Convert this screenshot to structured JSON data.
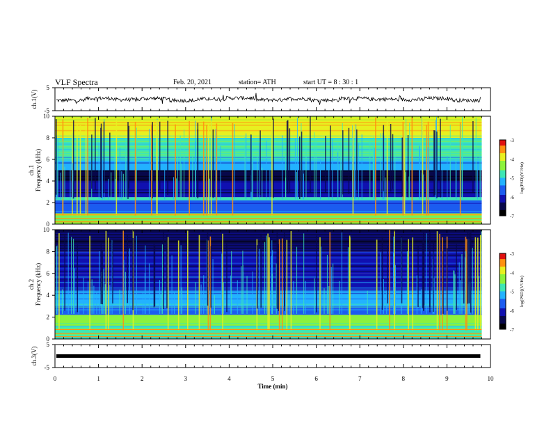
{
  "header": {
    "title": "VLF Spectra",
    "date": "Feb. 20, 2021",
    "station": "station= ATH",
    "start": "start  UT =   8  : 30 : 1"
  },
  "colors": {
    "spectrogram_scale": [
      "#000000",
      "#08084a",
      "#1010b0",
      "#1c5cf0",
      "#23b2ff",
      "#3ee6b4",
      "#8cf23c",
      "#e8f020",
      "#ff9010",
      "#e01010",
      "#ffffff"
    ],
    "trace": "#000000"
  },
  "chart_data": [
    {
      "type": "line",
      "panel": "ch1-waveform",
      "ylabel": "ch.1(V)",
      "ylim": [
        -5,
        5
      ],
      "yticks": [
        "5",
        "-5"
      ],
      "series": [
        {
          "values": [
            -0.5,
            0.4,
            -0.2,
            0.3,
            -0.6,
            0.1,
            0.5,
            -0.3,
            0.2,
            -0.4,
            0.3,
            0.0,
            -0.2,
            0.4,
            -0.5,
            0.2
          ]
        }
      ]
    },
    {
      "type": "heatmap",
      "panel": "ch1-spectrogram",
      "ylabel": "ch.1 Frequency (kHz)",
      "ylim": [
        0,
        10
      ],
      "yticks": [
        "10",
        "8",
        "6",
        "4",
        "2",
        "0"
      ],
      "colorbar": {
        "label": "log(PSD)(V²/Hz)",
        "ticks": [
          "-3",
          "-4",
          "-5",
          "-6",
          "-7"
        ],
        "range": [
          -7,
          -3
        ]
      },
      "bands_khz": [
        {
          "from": 0.0,
          "to": 1.0,
          "level": -4.3
        },
        {
          "from": 1.0,
          "to": 2.2,
          "level": -5.8
        },
        {
          "from": 2.2,
          "to": 2.5,
          "level": -4.8
        },
        {
          "from": 2.5,
          "to": 4.0,
          "level": -6.1
        },
        {
          "from": 4.0,
          "to": 5.0,
          "level": -6.7
        },
        {
          "from": 5.0,
          "to": 6.0,
          "level": -5.4
        },
        {
          "from": 6.0,
          "to": 8.0,
          "level": -4.9
        },
        {
          "from": 8.0,
          "to": 10.0,
          "level": -4.1
        }
      ]
    },
    {
      "type": "heatmap",
      "panel": "ch2-spectrogram",
      "ylabel": "ch.2 Frequency (kHz)",
      "ylim": [
        0,
        10
      ],
      "yticks": [
        "10",
        "8",
        "6",
        "4",
        "2",
        "0"
      ],
      "colorbar": {
        "label": "log(PSD)(V²/Hz)",
        "ticks": [
          "-3",
          "-4",
          "-5",
          "-6",
          "-7"
        ],
        "range": [
          -7,
          -3
        ]
      },
      "bands_khz": [
        {
          "from": 0.0,
          "to": 1.2,
          "level": -4.6
        },
        {
          "from": 1.2,
          "to": 2.2,
          "level": -4.4
        },
        {
          "from": 2.2,
          "to": 3.0,
          "level": -5.6
        },
        {
          "from": 3.0,
          "to": 4.5,
          "level": -5.4
        },
        {
          "from": 4.5,
          "to": 6.0,
          "level": -5.9
        },
        {
          "from": 6.0,
          "to": 8.0,
          "level": -6.2
        },
        {
          "from": 8.0,
          "to": 10.0,
          "level": -6.4
        }
      ]
    },
    {
      "type": "line",
      "panel": "ch3-waveform",
      "ylabel": "ch.3(V)",
      "ylim": [
        -5,
        5
      ],
      "yticks": [
        "5",
        "-5"
      ],
      "series": [
        {
          "values": [
            0,
            0
          ]
        }
      ]
    }
  ],
  "xaxis": {
    "label": "Time (min)",
    "xlim": [
      0,
      10
    ],
    "ticks": [
      "0",
      "1",
      "2",
      "3",
      "4",
      "5",
      "6",
      "7",
      "8",
      "9",
      "10"
    ],
    "data_end_min": 9.8
  }
}
